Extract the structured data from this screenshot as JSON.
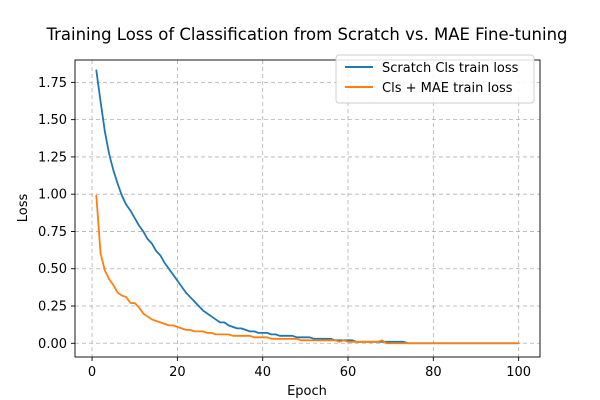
{
  "chart_data": {
    "type": "line",
    "title": "Training Loss of Classification from Scratch vs. MAE Fine-tuning",
    "xlabel": "Epoch",
    "ylabel": "Loss",
    "xlim": [
      -4,
      105
    ],
    "ylim": [
      -0.092,
      1.9
    ],
    "x_ticks": [
      0,
      20,
      40,
      60,
      80,
      100
    ],
    "x_tick_labels": [
      "0",
      "20",
      "40",
      "60",
      "80",
      "100"
    ],
    "y_ticks": [
      0.0,
      0.25,
      0.5,
      0.75,
      1.0,
      1.25,
      1.5,
      1.75
    ],
    "y_tick_labels": [
      "0.00",
      "0.25",
      "0.50",
      "0.75",
      "1.00",
      "1.25",
      "1.50",
      "1.75"
    ],
    "grid": true,
    "legend_position": "top-right",
    "series": [
      {
        "name": "Scratch Cls train loss",
        "color": "#1f77b4",
        "x": [
          1,
          2,
          3,
          4,
          5,
          6,
          7,
          8,
          9,
          10,
          11,
          12,
          13,
          14,
          15,
          16,
          17,
          18,
          19,
          20,
          21,
          22,
          23,
          24,
          25,
          26,
          27,
          28,
          29,
          30,
          31,
          32,
          33,
          34,
          35,
          36,
          37,
          38,
          39,
          40,
          41,
          42,
          43,
          44,
          45,
          46,
          47,
          48,
          49,
          50,
          51,
          52,
          53,
          54,
          55,
          56,
          57,
          58,
          59,
          60,
          61,
          62,
          63,
          64,
          65,
          66,
          67,
          68,
          69,
          70,
          71,
          72,
          73,
          74,
          75,
          76,
          77,
          78,
          79,
          80,
          81,
          82,
          83,
          84,
          85,
          86,
          87,
          88,
          89,
          90,
          91,
          92,
          93,
          94,
          95,
          96,
          97,
          98,
          99,
          100
        ],
        "y": [
          1.83,
          1.62,
          1.42,
          1.27,
          1.16,
          1.07,
          0.99,
          0.93,
          0.89,
          0.84,
          0.79,
          0.75,
          0.7,
          0.67,
          0.62,
          0.59,
          0.54,
          0.5,
          0.46,
          0.42,
          0.38,
          0.34,
          0.31,
          0.28,
          0.25,
          0.22,
          0.2,
          0.18,
          0.16,
          0.14,
          0.14,
          0.12,
          0.11,
          0.1,
          0.1,
          0.09,
          0.08,
          0.08,
          0.07,
          0.07,
          0.07,
          0.06,
          0.06,
          0.05,
          0.05,
          0.05,
          0.05,
          0.04,
          0.04,
          0.04,
          0.04,
          0.03,
          0.03,
          0.03,
          0.03,
          0.03,
          0.02,
          0.02,
          0.02,
          0.02,
          0.02,
          0.01,
          0.01,
          0.01,
          0.01,
          0.01,
          0.01,
          0.01,
          0.01,
          0.01,
          0.01,
          0.01,
          0.01,
          0.0,
          0.0,
          0.0,
          0.0,
          0.0,
          0.0,
          0.0,
          0.0,
          0.0,
          0.0,
          0.0,
          0.0,
          0.0,
          0.0,
          0.0,
          0.0,
          0.0,
          0.0,
          0.0,
          0.0,
          0.0,
          0.0,
          0.0,
          0.0,
          0.0,
          0.0,
          0.0
        ]
      },
      {
        "name": "Cls + MAE train loss",
        "color": "#ff7f0e",
        "x": [
          1,
          2,
          3,
          4,
          5,
          6,
          7,
          8,
          9,
          10,
          11,
          12,
          13,
          14,
          15,
          16,
          17,
          18,
          19,
          20,
          21,
          22,
          23,
          24,
          25,
          26,
          27,
          28,
          29,
          30,
          31,
          32,
          33,
          34,
          35,
          36,
          37,
          38,
          39,
          40,
          41,
          42,
          43,
          44,
          45,
          46,
          47,
          48,
          49,
          50,
          51,
          52,
          53,
          54,
          55,
          56,
          57,
          58,
          59,
          60,
          61,
          62,
          63,
          64,
          65,
          66,
          67,
          68,
          69,
          70,
          71,
          72,
          73,
          74,
          75,
          76,
          77,
          78,
          79,
          80,
          81,
          82,
          83,
          84,
          85,
          86,
          87,
          88,
          89,
          90,
          91,
          92,
          93,
          94,
          95,
          96,
          97,
          98,
          99,
          100
        ],
        "y": [
          0.99,
          0.6,
          0.49,
          0.43,
          0.39,
          0.34,
          0.32,
          0.31,
          0.27,
          0.27,
          0.24,
          0.2,
          0.18,
          0.16,
          0.15,
          0.14,
          0.13,
          0.12,
          0.12,
          0.11,
          0.1,
          0.09,
          0.09,
          0.08,
          0.08,
          0.08,
          0.07,
          0.07,
          0.06,
          0.06,
          0.06,
          0.06,
          0.05,
          0.05,
          0.05,
          0.05,
          0.05,
          0.04,
          0.04,
          0.04,
          0.04,
          0.03,
          0.03,
          0.03,
          0.03,
          0.03,
          0.03,
          0.03,
          0.02,
          0.02,
          0.02,
          0.02,
          0.02,
          0.02,
          0.02,
          0.02,
          0.02,
          0.01,
          0.02,
          0.01,
          0.01,
          0.01,
          0.01,
          0.01,
          0.01,
          0.01,
          0.01,
          0.02,
          0.0,
          0.0,
          0.0,
          0.0,
          0.0,
          0.0,
          0.0,
          0.0,
          0.0,
          0.0,
          0.0,
          0.0,
          0.0,
          0.0,
          0.0,
          0.0,
          0.0,
          0.0,
          0.0,
          0.0,
          0.0,
          0.0,
          0.0,
          0.0,
          0.0,
          0.0,
          0.0,
          0.0,
          0.0,
          0.0,
          0.0,
          0.0
        ]
      }
    ]
  }
}
